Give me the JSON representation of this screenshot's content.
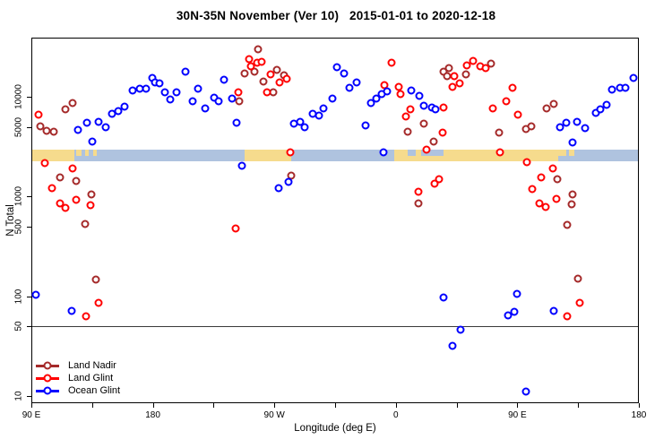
{
  "title": "30N-35N November (Ver 10)   2015-01-01 to 2020-12-18",
  "axes": {
    "x_label": "Longitude (deg E)",
    "y_label": "N Total",
    "x_range_unwrapped_deg": [
      90,
      540
    ],
    "y_scale": "log10",
    "y_range": [
      8,
      40000
    ],
    "reference_line_value": 50,
    "x_ticks": [
      {
        "v": 90,
        "label": "90 E"
      },
      {
        "v": 135,
        "label": ""
      },
      {
        "v": 180,
        "label": "180"
      },
      {
        "v": 225,
        "label": ""
      },
      {
        "v": 270,
        "label": "90 W"
      },
      {
        "v": 315,
        "label": ""
      },
      {
        "v": 360,
        "label": "0"
      },
      {
        "v": 405,
        "label": ""
      },
      {
        "v": 450,
        "label": "90 E"
      },
      {
        "v": 495,
        "label": ""
      },
      {
        "v": 540,
        "label": "180"
      }
    ],
    "y_ticks": [
      {
        "v": 10,
        "label": "10"
      },
      {
        "v": 50,
        "label": "50"
      },
      {
        "v": 100,
        "label": "100"
      },
      {
        "v": 500,
        "label": "500"
      },
      {
        "v": 1000,
        "label": "1000"
      },
      {
        "v": 5000,
        "label": "5000"
      },
      {
        "v": 10000,
        "label": "10000"
      }
    ]
  },
  "legend": [
    {
      "label": "Land Nadir",
      "color": "#A52A2A"
    },
    {
      "label": "Land Glint",
      "color": "#FF0000"
    },
    {
      "label": "Ocean Glint",
      "color": "#0000FF"
    }
  ],
  "map_band": {
    "description": "land/ocean strip for 30N-35N along longitude",
    "ocean_color": "#AFC3DF",
    "land_color": "#F6DB8D",
    "land_segments": [
      {
        "from": 90,
        "to": 122,
        "part": "full"
      },
      {
        "from": 123.5,
        "to": 127,
        "part": "top"
      },
      {
        "from": 129.5,
        "to": 132.5,
        "part": "top"
      },
      {
        "from": 135.5,
        "to": 138.5,
        "part": "top"
      },
      {
        "from": 248,
        "to": 282.5,
        "part": "full"
      },
      {
        "from": 359,
        "to": 369,
        "part": "full"
      },
      {
        "from": 369,
        "to": 395,
        "part": "bottom"
      },
      {
        "from": 375,
        "to": 379,
        "part": "top"
      },
      {
        "from": 395,
        "to": 480,
        "part": "full"
      },
      {
        "from": 480,
        "to": 486.5,
        "part": "top"
      },
      {
        "from": 488.5,
        "to": 492.5,
        "part": "top"
      }
    ]
  },
  "chart_data": {
    "type": "scatter",
    "title": "30N-35N November (Ver 10)   2015-01-01 to 2020-12-18",
    "xlabel": "Longitude (deg E)",
    "ylabel": "N Total",
    "x_note": "longitude unwrapped eastward: 90E..180..270(=90W)..360(=0)..450(=90E)..540(=180)",
    "ylim": [
      8,
      40000
    ],
    "y_scale": "log",
    "legend_position": "bottom-left",
    "grid": false,
    "series": [
      {
        "name": "Land Nadir",
        "color": "#A52A2A",
        "points": [
          [
            115,
            7500
          ],
          [
            120.5,
            8700
          ],
          [
            96.5,
            5100
          ],
          [
            101.5,
            4600
          ],
          [
            106.5,
            4500
          ],
          [
            244,
            9000
          ],
          [
            258,
            30000
          ],
          [
            248,
            17000
          ],
          [
            255.5,
            17900
          ],
          [
            272,
            18600
          ],
          [
            277,
            16400
          ],
          [
            262,
            14200
          ],
          [
            269,
            11100
          ],
          [
            369,
            4500
          ],
          [
            381,
            5400
          ],
          [
            388,
            3560
          ],
          [
            395.5,
            17900
          ],
          [
            399.5,
            19400
          ],
          [
            398,
            16100
          ],
          [
            412,
            16800
          ],
          [
            430.5,
            21500
          ],
          [
            436.5,
            4400
          ],
          [
            456.5,
            4750
          ],
          [
            460.5,
            5100
          ],
          [
            471.5,
            7700
          ],
          [
            477,
            8500
          ],
          [
            111,
            1560
          ],
          [
            123,
            1430
          ],
          [
            134.5,
            1050
          ],
          [
            130,
            530
          ],
          [
            282.5,
            1620
          ],
          [
            377,
            850
          ],
          [
            479.5,
            1490
          ],
          [
            491,
            1050
          ],
          [
            490,
            840
          ],
          [
            487,
            520
          ],
          [
            138,
            147
          ],
          [
            495,
            150
          ]
        ]
      },
      {
        "name": "Land Glint",
        "color": "#FF0000",
        "points": [
          [
            95.5,
            6600
          ],
          [
            251.5,
            23900
          ],
          [
            257.5,
            22000
          ],
          [
            260.5,
            22400
          ],
          [
            252.5,
            20200
          ],
          [
            267,
            16800
          ],
          [
            274,
            14000
          ],
          [
            279,
            15200
          ],
          [
            264.5,
            11100
          ],
          [
            243.5,
            11100
          ],
          [
            351.5,
            13100
          ],
          [
            357,
            22000
          ],
          [
            362,
            12600
          ],
          [
            363.5,
            10700
          ],
          [
            370.5,
            7500
          ],
          [
            367.5,
            6400
          ],
          [
            382.5,
            2960
          ],
          [
            394.5,
            4400
          ],
          [
            395.5,
            7800
          ],
          [
            412.5,
            20600
          ],
          [
            417,
            22900
          ],
          [
            422.5,
            20200
          ],
          [
            426.5,
            19400
          ],
          [
            403.5,
            16100
          ],
          [
            407.5,
            13700
          ],
          [
            402,
            12600
          ],
          [
            446.5,
            12300
          ],
          [
            442,
            9000
          ],
          [
            432,
            7700
          ],
          [
            450.5,
            6600
          ],
          [
            100,
            2170
          ],
          [
            120.5,
            1910
          ],
          [
            105.5,
            1210
          ],
          [
            123,
            930
          ],
          [
            111,
            850
          ],
          [
            115,
            770
          ],
          [
            134,
            820
          ],
          [
            241.5,
            480
          ],
          [
            282,
            2780
          ],
          [
            377,
            1120
          ],
          [
            388.5,
            1350
          ],
          [
            392,
            1490
          ],
          [
            437,
            2780
          ],
          [
            457,
            2200
          ],
          [
            467.5,
            1560
          ],
          [
            476.5,
            1910
          ],
          [
            461,
            1190
          ],
          [
            466.5,
            850
          ],
          [
            471,
            790
          ],
          [
            479,
            950
          ],
          [
            140,
            86
          ],
          [
            130.5,
            63
          ],
          [
            487,
            63
          ],
          [
            496,
            86
          ]
        ]
      },
      {
        "name": "Ocean Glint",
        "color": "#0000FF",
        "points": [
          [
            124.5,
            4660
          ],
          [
            131,
            5500
          ],
          [
            140,
            5610
          ],
          [
            145,
            4950
          ],
          [
            135,
            3560
          ],
          [
            149.5,
            6760
          ],
          [
            154.5,
            7200
          ],
          [
            159,
            7980
          ],
          [
            165,
            11600
          ],
          [
            170.5,
            12100
          ],
          [
            175,
            12100
          ],
          [
            179.5,
            15500
          ],
          [
            181.5,
            14000
          ],
          [
            185,
            13700
          ],
          [
            189,
            11100
          ],
          [
            193,
            9400
          ],
          [
            197.5,
            11100
          ],
          [
            204,
            17900
          ],
          [
            209.5,
            9000
          ],
          [
            213.5,
            12100
          ],
          [
            219,
            7660
          ],
          [
            225.5,
            9800
          ],
          [
            228.5,
            9000
          ],
          [
            232.5,
            14850
          ],
          [
            238.5,
            9600
          ],
          [
            242,
            5500
          ],
          [
            246,
            2040
          ],
          [
            284.5,
            5380
          ],
          [
            289,
            5610
          ],
          [
            292.5,
            4950
          ],
          [
            298.5,
            6760
          ],
          [
            303,
            6490
          ],
          [
            306.5,
            7660
          ],
          [
            313,
            9620
          ],
          [
            316.5,
            19800
          ],
          [
            321.5,
            17100
          ],
          [
            325.5,
            12300
          ],
          [
            331,
            14000
          ],
          [
            337.5,
            5160
          ],
          [
            341.5,
            8670
          ],
          [
            345.5,
            9620
          ],
          [
            349.5,
            10700
          ],
          [
            353.5,
            11350
          ],
          [
            371.5,
            11600
          ],
          [
            377.5,
            10230
          ],
          [
            380.5,
            8150
          ],
          [
            386.5,
            7820
          ],
          [
            389.5,
            7500
          ],
          [
            351,
            2780
          ],
          [
            280.5,
            1400
          ],
          [
            273,
            1210
          ],
          [
            481.5,
            4950
          ],
          [
            486,
            5500
          ],
          [
            494,
            5610
          ],
          [
            500,
            4850
          ],
          [
            508,
            6900
          ],
          [
            511.5,
            7500
          ],
          [
            516,
            8320
          ],
          [
            520,
            11800
          ],
          [
            526,
            12300
          ],
          [
            530,
            12300
          ],
          [
            536,
            15500
          ],
          [
            491,
            3480
          ],
          [
            93.5,
            103
          ],
          [
            120,
            71
          ],
          [
            395.5,
            97
          ],
          [
            449.5,
            106
          ],
          [
            443,
            64
          ],
          [
            447.5,
            70
          ],
          [
            477,
            71
          ],
          [
            408,
            46
          ],
          [
            402,
            32
          ],
          [
            456.5,
            11
          ]
        ]
      }
    ]
  }
}
